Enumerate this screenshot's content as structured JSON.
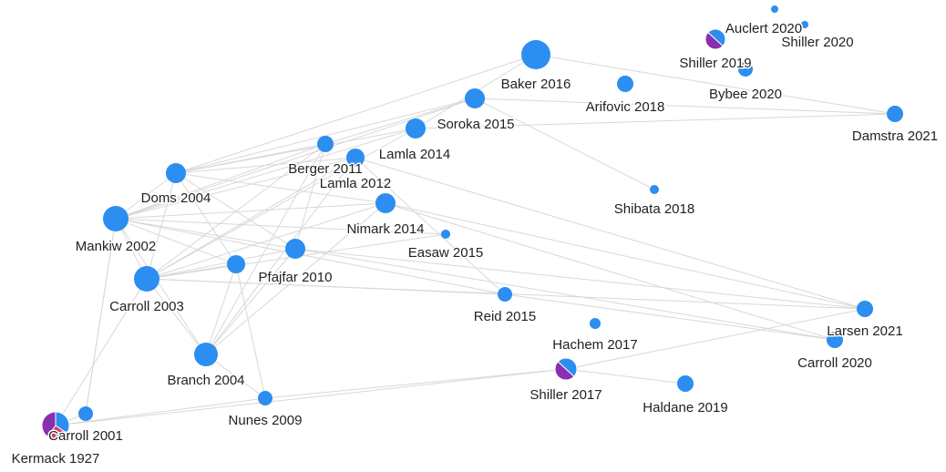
{
  "nodes": [
    {
      "label": "Baker 2016"
    },
    {
      "label": "Auclert 2020"
    },
    {
      "label": "Shiller 2020"
    },
    {
      "label": "Shiller 2019"
    },
    {
      "label": "Bybee 2020"
    },
    {
      "label": "Arifovic 2018"
    },
    {
      "label": "Damstra 2021"
    },
    {
      "label": "Soroka 2015"
    },
    {
      "label": "Lamla 2014"
    },
    {
      "label": "Berger 2011"
    },
    {
      "label": "Lamla 2012"
    },
    {
      "label": "Doms 2004"
    },
    {
      "label": "Mankiw 2002"
    },
    {
      "label": "Nimark 2014"
    },
    {
      "label": "Easaw 2015"
    },
    {
      "label": "Shibata 2018"
    },
    {
      "label": "Pfajfar 2010"
    },
    {
      "label": "Carroll 2003"
    },
    {
      "label": "Reid 2015"
    },
    {
      "label": "Hachem 2017"
    },
    {
      "label": "Larsen 2021"
    },
    {
      "label": "Carroll 2020"
    },
    {
      "label": "Branch 2004"
    },
    {
      "label": "Shiller 2017"
    },
    {
      "label": "Haldane 2019"
    },
    {
      "label": "Nunes 2009"
    },
    {
      "label": "Carroll 2001"
    },
    {
      "label": "Kermack 1927"
    }
  ]
}
